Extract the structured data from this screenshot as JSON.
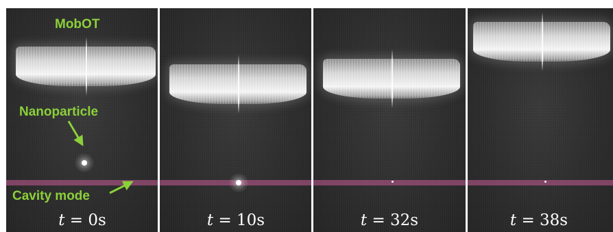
{
  "labels": {
    "mobot": "MobOT",
    "nanoparticle": "Nanoparticle",
    "cavity_mode": "Cavity mode"
  },
  "frames": [
    {
      "time_var": "t",
      "time_eq": "= 0s"
    },
    {
      "time_var": "t",
      "time_eq": "= 10s"
    },
    {
      "time_var": "t",
      "time_eq": "= 32s"
    },
    {
      "time_var": "t",
      "time_eq": "= 38s"
    }
  ],
  "colors": {
    "label_green": "#8bd03a",
    "cavity_mode": "#c75a96",
    "frame_bg": "#2d2d2d"
  }
}
